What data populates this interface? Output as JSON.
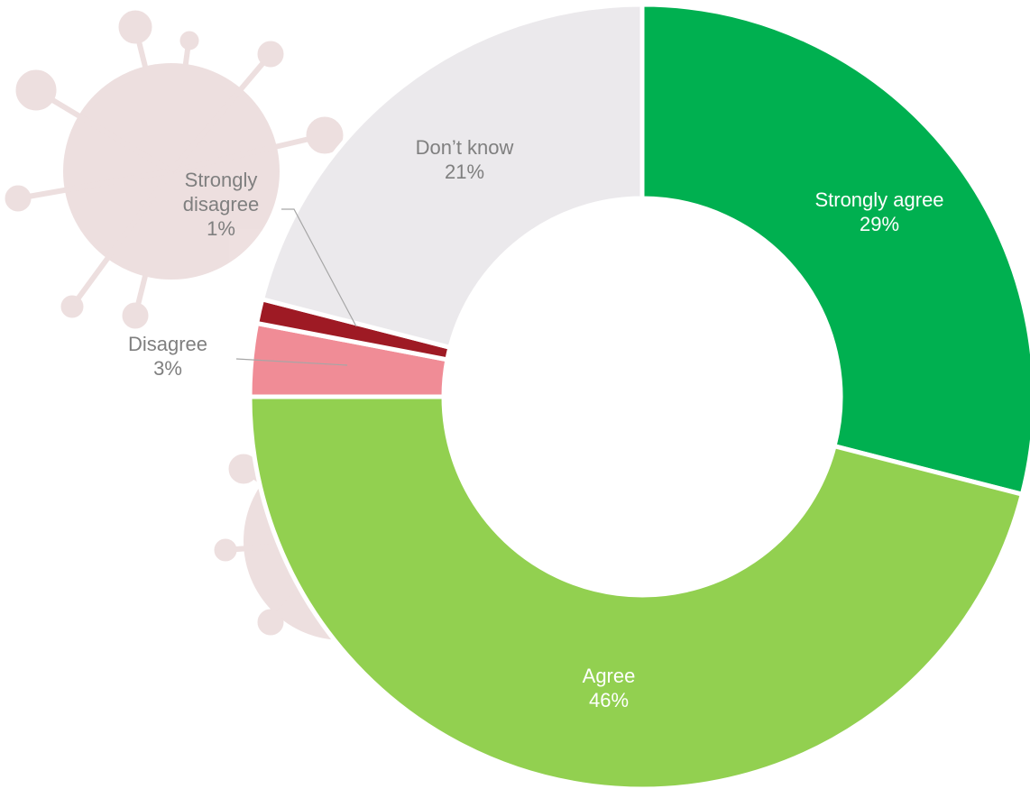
{
  "chart_data": {
    "type": "donut",
    "categories": [
      "Strongly agree",
      "Agree",
      "Disagree",
      "Strongly disagree",
      "Don’t know"
    ],
    "values": [
      29,
      46,
      3,
      1,
      21
    ],
    "value_labels": [
      "29%",
      "46%",
      "3%",
      "1%",
      "21%"
    ],
    "colors": [
      "#00b050",
      "#92d050",
      "#f08c96",
      "#9e1a24",
      "#ebe9ec"
    ],
    "label_colors": [
      "#ffffff",
      "#ffffff",
      "#7f7f7f",
      "#7f7f7f",
      "#7f7f7f"
    ]
  }
}
